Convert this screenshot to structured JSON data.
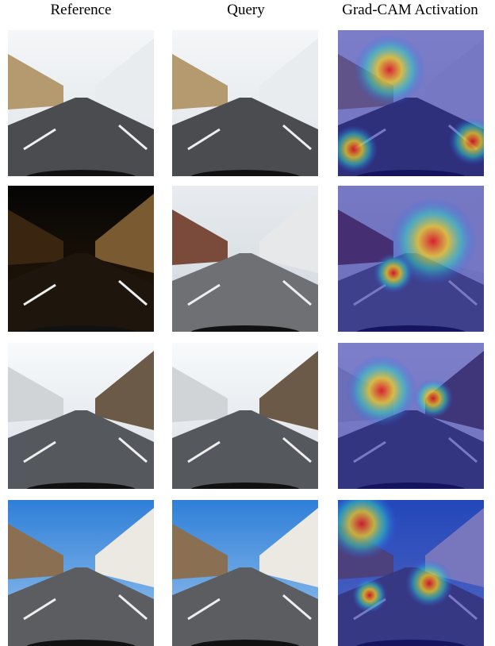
{
  "headers": [
    "Reference",
    "Query",
    "Grad-CAM Activation"
  ]
}
